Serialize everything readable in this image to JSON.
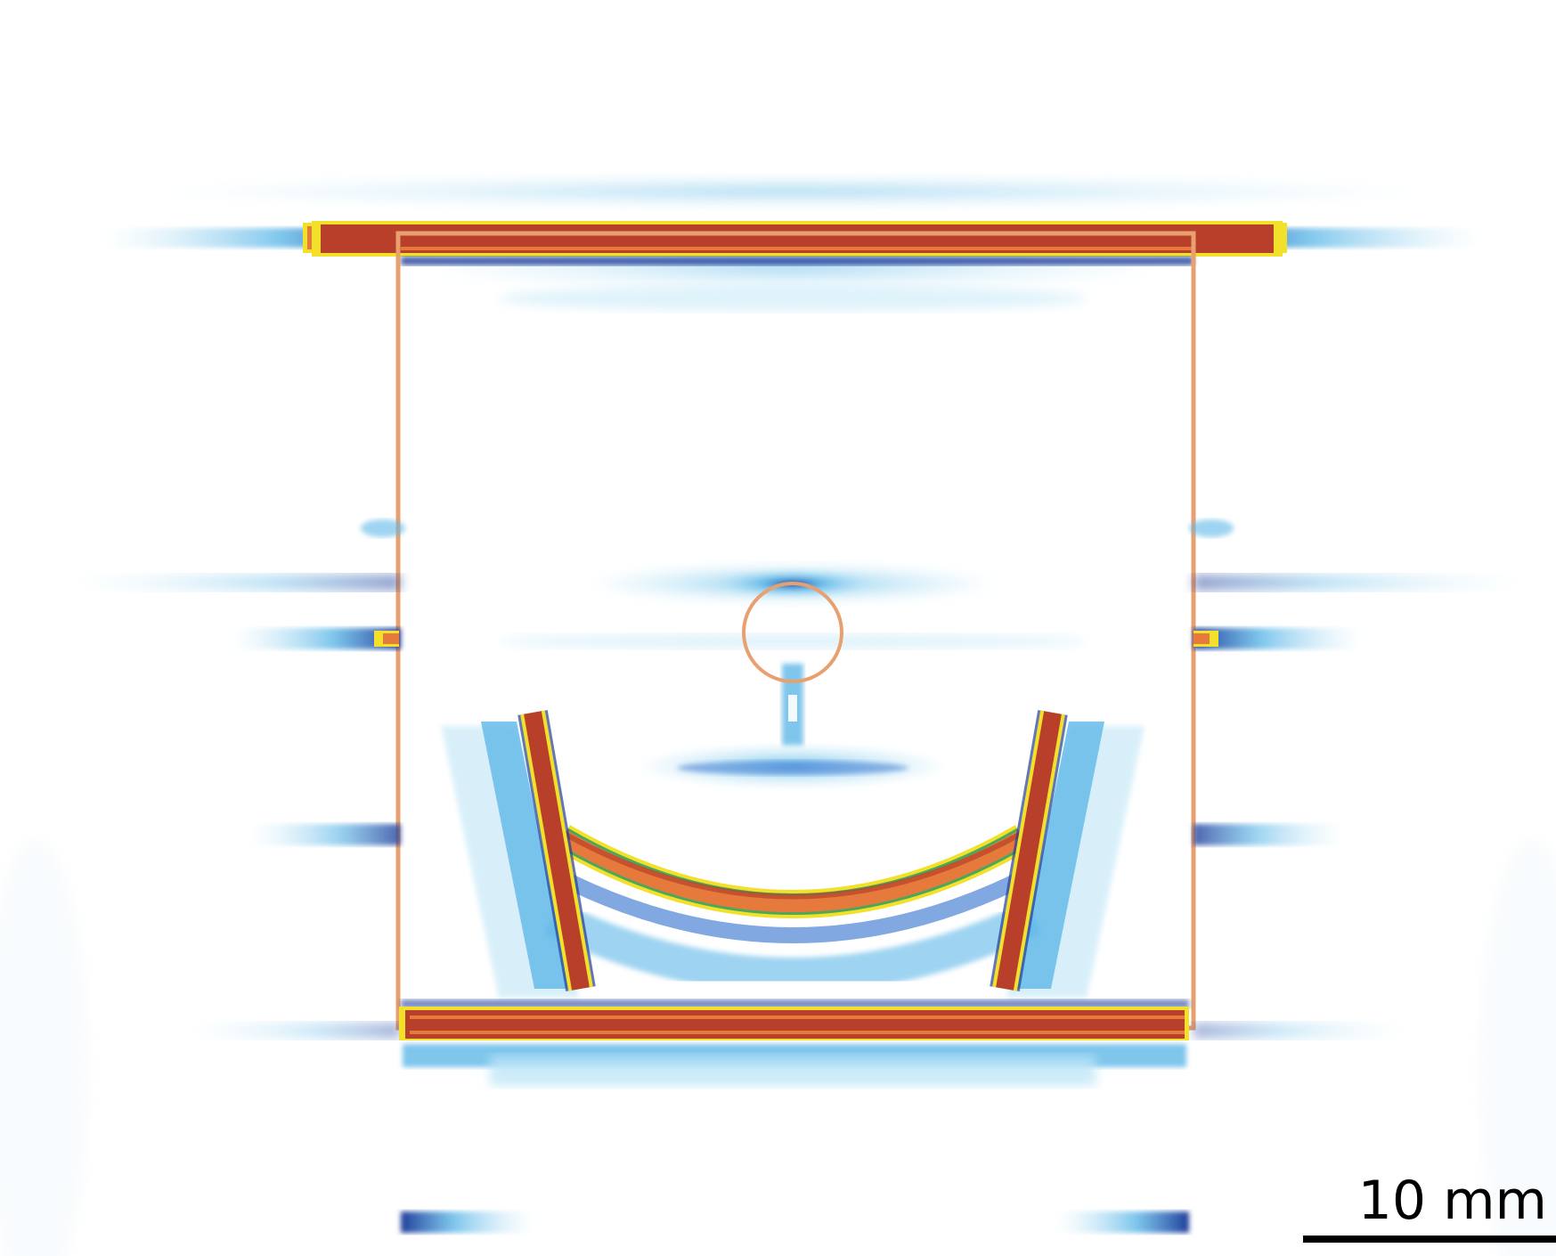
{
  "scale_bar": {
    "label": "10 mm",
    "length_mm": 10
  },
  "colors": {
    "background": "#ffffff",
    "outline": "#e8a070",
    "high_field": "#b8402a",
    "mid_high_field": "#e67a3c",
    "mid_field": "#f2e02a",
    "low_mid_field": "#4aa85a",
    "low_field": "#1f3d9a",
    "faint_field": "#5fb8e8",
    "trace_field": "#bfe6f7"
  },
  "legend_icons": {
    "outline_shape": "rectangle-outline",
    "inclusion_shape": "circle-outline"
  }
}
